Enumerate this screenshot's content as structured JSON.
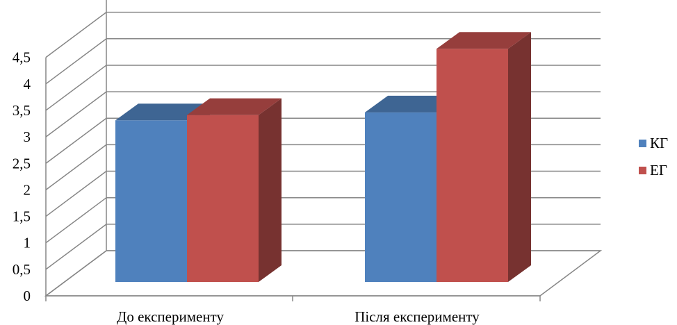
{
  "chart_data": {
    "type": "bar",
    "style": "3d-clustered-column",
    "categories": [
      "До експерименту",
      "Після експерименту"
    ],
    "series": [
      {
        "name": "КГ",
        "values": [
          3.05,
          3.2
        ],
        "color": "#4F81BD"
      },
      {
        "name": "ЕГ",
        "values": [
          3.15,
          4.4
        ],
        "color": "#C0504D"
      }
    ],
    "ylim": [
      0,
      4.5
    ],
    "yticks": [
      "0",
      "0,5",
      "1",
      "1,5",
      "2",
      "2,5",
      "3",
      "3,5",
      "4",
      "4,5"
    ],
    "grid": true,
    "legend_position": "right"
  }
}
